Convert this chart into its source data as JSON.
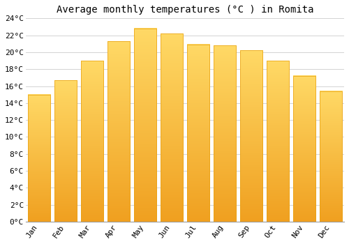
{
  "title": "Average monthly temperatures (°C ) in Romita",
  "months": [
    "Jan",
    "Feb",
    "Mar",
    "Apr",
    "May",
    "Jun",
    "Jul",
    "Aug",
    "Sep",
    "Oct",
    "Nov",
    "Dec"
  ],
  "values": [
    15.0,
    16.7,
    19.0,
    21.3,
    22.8,
    22.2,
    20.9,
    20.8,
    20.2,
    19.0,
    17.2,
    15.4
  ],
  "bar_color_top": "#FFD966",
  "bar_color_bottom": "#F0A020",
  "bar_edge_color": "#E8A010",
  "background_color": "#FFFFFF",
  "grid_color": "#CCCCCC",
  "ylim": [
    0,
    24
  ],
  "ytick_step": 2,
  "title_fontsize": 10,
  "tick_fontsize": 8,
  "font_family": "monospace"
}
